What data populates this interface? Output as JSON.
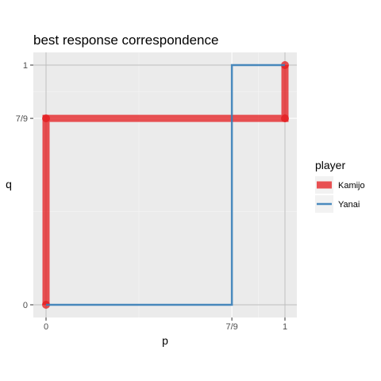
{
  "chart_data": {
    "type": "line",
    "title": "best response correspondence",
    "xlabel": "p",
    "ylabel": "q",
    "xlim": [
      -0.05,
      1.05
    ],
    "ylim": [
      -0.05,
      1.05
    ],
    "x_ticks": [
      {
        "value": 0,
        "label": "0"
      },
      {
        "value": 0.7778,
        "label": "7/9"
      },
      {
        "value": 1,
        "label": "1"
      }
    ],
    "y_ticks": [
      {
        "value": 0,
        "label": "0"
      },
      {
        "value": 0.7778,
        "label": "7/9"
      },
      {
        "value": 1,
        "label": "1"
      }
    ],
    "grid": true,
    "legend": {
      "title": "player",
      "position": "right"
    },
    "series": [
      {
        "name": "Kamijo",
        "color": "#e41a1c",
        "points": [
          [
            0,
            0
          ],
          [
            0,
            0.7778
          ],
          [
            1,
            0.7778
          ],
          [
            1,
            1
          ]
        ]
      },
      {
        "name": "Yanai",
        "color": "#377eb8",
        "points": [
          [
            0,
            0
          ],
          [
            0.7778,
            0
          ],
          [
            0.7778,
            1
          ],
          [
            1,
            1
          ]
        ]
      }
    ]
  }
}
